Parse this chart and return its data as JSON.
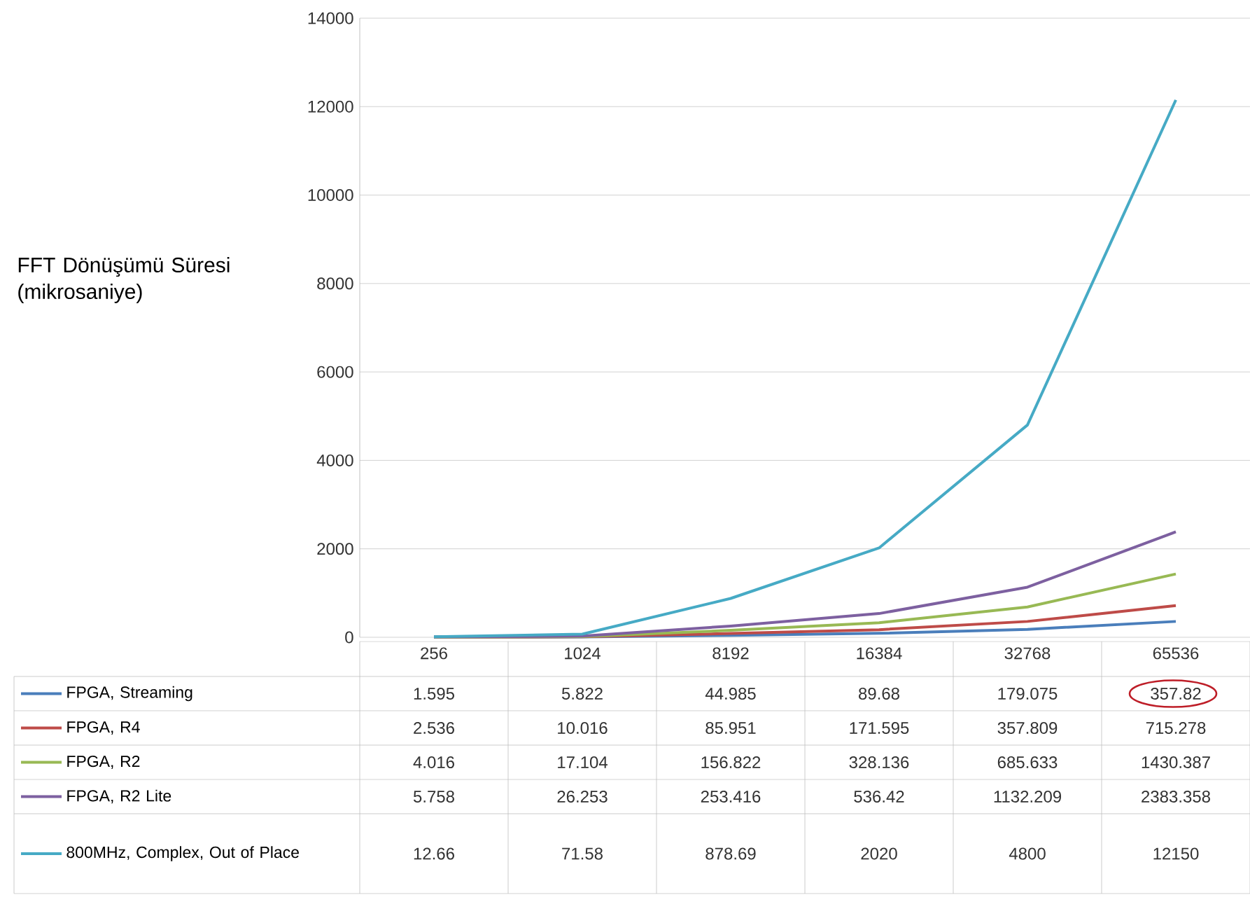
{
  "chart_data": {
    "type": "line",
    "ylabel": "FFT Dönüşümü Süresi (mikrosaniye)",
    "categories": [
      "256",
      "1024",
      "8192",
      "16384",
      "32768",
      "65536"
    ],
    "series": [
      {
        "name": "FPGA, Streaming",
        "color": "#4a7ebb",
        "values": [
          1.595,
          5.822,
          44.985,
          89.68,
          179.075,
          357.82
        ]
      },
      {
        "name": "FPGA, R4",
        "color": "#be4b48",
        "values": [
          2.536,
          10.016,
          85.951,
          171.595,
          357.809,
          715.278
        ]
      },
      {
        "name": "FPGA, R2",
        "color": "#98b954",
        "values": [
          4.016,
          17.104,
          156.822,
          328.136,
          685.633,
          1430.387
        ]
      },
      {
        "name": "FPGA, R2 Lite",
        "color": "#7d60a0",
        "values": [
          5.758,
          26.253,
          253.416,
          536.42,
          1132.209,
          2383.358
        ]
      },
      {
        "name": "800MHz, Complex, Out of Place",
        "color": "#46aac5",
        "values": [
          12.66,
          71.58,
          878.69,
          2020,
          4800,
          12150
        ]
      }
    ],
    "ylim": [
      0,
      14000
    ],
    "yticks": [
      0,
      2000,
      4000,
      6000,
      8000,
      10000,
      12000,
      14000
    ],
    "grid": "y",
    "legend": "bottom",
    "data_labels": true
  }
}
